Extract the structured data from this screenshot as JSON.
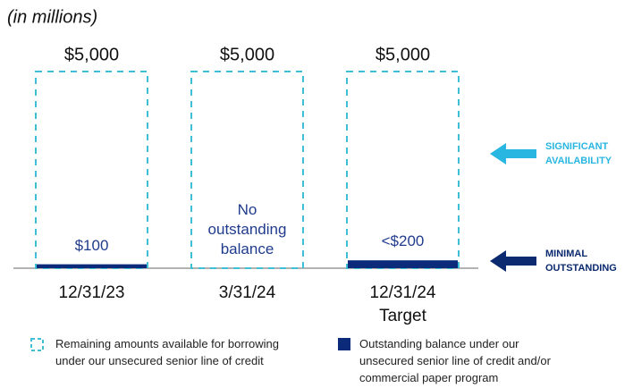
{
  "chart_data": {
    "type": "bar",
    "subtitle": "(in millions)",
    "categories": [
      "12/31/23",
      "3/31/24",
      "12/31/24"
    ],
    "category_notes": [
      null,
      null,
      "Target"
    ],
    "series": [
      {
        "name": "Remaining amounts available for borrowing under our unsecured senior line of credit",
        "legend_lines": [
          "Remaining amounts available for borrowing",
          "under our unsecured senior line of credit"
        ],
        "color": "#3fbfd6",
        "style": "dashed",
        "values": [
          5000,
          5000,
          5000
        ],
        "value_labels": [
          "$5,000",
          "$5,000",
          "$5,000"
        ]
      },
      {
        "name": "Outstanding balance under our unsecured senior line of credit and/or commercial paper program",
        "legend_lines": [
          "Outstanding balance under our",
          "unsecured senior line of credit and/or",
          "commercial paper program"
        ],
        "color": "#0b2a7a",
        "style": "solid",
        "values": [
          100,
          0,
          200
        ],
        "value_labels": [
          "$100",
          "No outstanding balance",
          "<$200"
        ]
      }
    ],
    "annotations": [
      {
        "lines": [
          "SIGNIFICANT",
          "AVAILABILITY"
        ],
        "color": "#29b6e0"
      },
      {
        "lines": [
          "MINIMAL",
          "OUTSTANDING"
        ],
        "color": "#0b2a6f"
      }
    ]
  }
}
